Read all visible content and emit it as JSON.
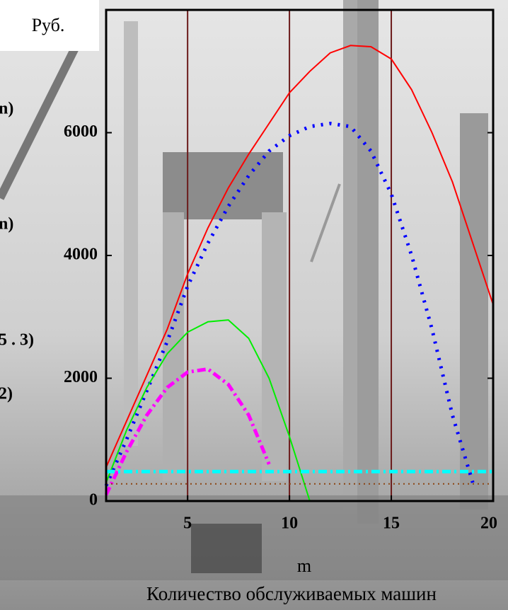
{
  "chart_data": {
    "type": "line",
    "title": "Количество обслуживаемых машин",
    "ylabel": "Руб.",
    "xlabel": "m",
    "annotations": [
      "n)",
      "n)",
      "5 . 3)",
      "2)"
    ],
    "x": [
      1,
      2,
      3,
      4,
      5,
      6,
      7,
      8,
      9,
      10,
      11,
      12,
      13,
      14,
      15,
      16,
      17,
      18,
      19,
      20
    ],
    "series": [
      {
        "color": "#ff0000",
        "style": "solid",
        "values": [
          550,
          1300,
          2050,
          2800,
          3700,
          4450,
          5100,
          5650,
          6150,
          6650,
          7000,
          7300,
          7420,
          7400,
          7200,
          6700,
          6000,
          5200,
          4200,
          3200
        ]
      },
      {
        "color": "#0000ff",
        "style": "dotted",
        "values": [
          250,
          1000,
          1800,
          2600,
          3500,
          4200,
          4800,
          5300,
          5700,
          5950,
          6100,
          6150,
          6100,
          5700,
          5000,
          4000,
          2800,
          1400,
          300,
          null
        ]
      },
      {
        "color": "#00ee00",
        "style": "solid",
        "values": [
          300,
          1150,
          1850,
          2400,
          2750,
          2920,
          2950,
          2650,
          2000,
          1050,
          0,
          null,
          null,
          null,
          null,
          null,
          null,
          null,
          null,
          null
        ]
      },
      {
        "color": "#ff00ff",
        "style": "dashdot",
        "values": [
          100,
          800,
          1400,
          1850,
          2100,
          2150,
          1900,
          1400,
          600,
          null,
          null,
          null,
          null,
          null,
          null,
          null,
          null,
          null,
          null,
          null
        ]
      },
      {
        "color": "#00ffff",
        "style": "dashdot",
        "values": [
          480,
          480,
          480,
          480,
          480,
          480,
          480,
          480,
          480,
          480,
          480,
          480,
          480,
          480,
          480,
          480,
          480,
          480,
          480,
          480
        ]
      },
      {
        "color": "#8b4513",
        "style": "dotted-thin",
        "values": [
          280,
          280,
          280,
          280,
          280,
          280,
          280,
          280,
          280,
          280,
          280,
          280,
          280,
          280,
          280,
          280,
          280,
          280,
          280,
          280
        ]
      }
    ],
    "xlim": [
      1,
      20
    ],
    "ylim": [
      0,
      8000
    ],
    "xticks": [
      5,
      10,
      15,
      20
    ],
    "yticks": [
      0,
      2000,
      4000,
      6000
    ],
    "grid": true,
    "grid_color": "#6b1a1a"
  }
}
